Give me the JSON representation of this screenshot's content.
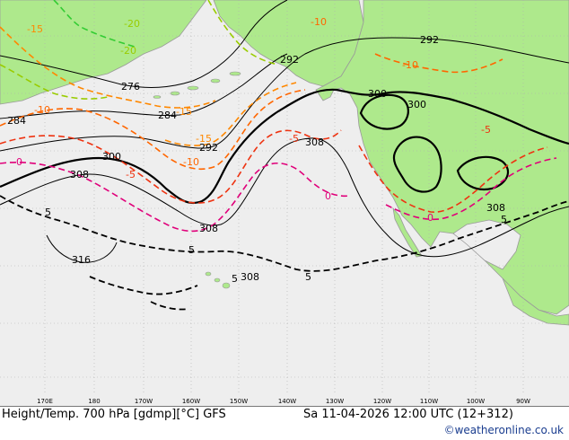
{
  "footer": {
    "left": "Height/Temp. 700 hPa [gdmp][°C] GFS",
    "right": "Sa 11-04-2026 12:00 UTC (12+312)",
    "credit": "©weatheronline.co.uk"
  },
  "lon_labels": [
    "170E",
    "180",
    "170W",
    "160W",
    "150W",
    "140W",
    "130W",
    "120W",
    "110W",
    "100W",
    "90W"
  ],
  "height_labels": [
    "276",
    "284",
    "284",
    "292",
    "292",
    "292",
    "300",
    "300",
    "300",
    "308",
    "308",
    "308",
    "308",
    "308",
    "316"
  ],
  "temp_labels": [
    "-20",
    "-15",
    "-15",
    "-10",
    "-10",
    "-10",
    "-10",
    "-5",
    "-5",
    "-5",
    "0",
    "0",
    "0",
    "5",
    "5",
    "5",
    "5",
    "5",
    "-15",
    "-20"
  ],
  "colors": {
    "sea": "#eeeeee",
    "land": "#aee98c",
    "coast": "#9a9a9a",
    "height": "#000000",
    "t_cold": "#33cc33",
    "t_m20": "#99cc00",
    "t_m15": "#ff8800",
    "t_m10": "#ff6600",
    "t_m5": "#ee3311",
    "t_0": "#e0007a",
    "t_5": "#000000",
    "credit": "#1a3d8f"
  }
}
